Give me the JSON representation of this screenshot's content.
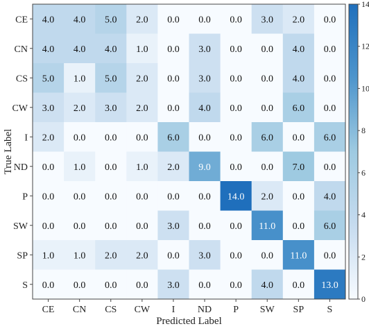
{
  "chart_data": {
    "type": "heatmap",
    "xlabel": "Predicted Label",
    "ylabel": "True Label",
    "x_categories": [
      "CE",
      "CN",
      "CS",
      "CW",
      "I",
      "ND",
      "P",
      "SW",
      "SP",
      "S"
    ],
    "y_categories": [
      "CE",
      "CN",
      "CS",
      "CW",
      "I",
      "ND",
      "P",
      "SW",
      "SP",
      "S"
    ],
    "values": [
      [
        4,
        4,
        5,
        2,
        0,
        0,
        0,
        3,
        2,
        0
      ],
      [
        4,
        4,
        4,
        1,
        0,
        3,
        0,
        0,
        4,
        0
      ],
      [
        5,
        1,
        5,
        2,
        0,
        3,
        0,
        0,
        4,
        0
      ],
      [
        3,
        2,
        3,
        2,
        0,
        4,
        0,
        0,
        6,
        0
      ],
      [
        2,
        0,
        0,
        0,
        6,
        0,
        0,
        6,
        0,
        6
      ],
      [
        0,
        1,
        0,
        1,
        2,
        9,
        0,
        0,
        7,
        0
      ],
      [
        0,
        0,
        0,
        0,
        0,
        0,
        14,
        2,
        0,
        4
      ],
      [
        0,
        0,
        0,
        0,
        3,
        0,
        0,
        11,
        0,
        6
      ],
      [
        1,
        1,
        2,
        2,
        0,
        3,
        0,
        0,
        11,
        0
      ],
      [
        0,
        0,
        0,
        0,
        3,
        0,
        0,
        4,
        0,
        13
      ]
    ],
    "value_format": "one_decimal",
    "colorbar": {
      "min": 0,
      "max": 14,
      "ticks": [
        "0",
        "2",
        "4",
        "6",
        "8",
        "10",
        "12",
        "14"
      ],
      "colormap": "Blues"
    },
    "grid": false,
    "legend": "colorbar-right"
  }
}
